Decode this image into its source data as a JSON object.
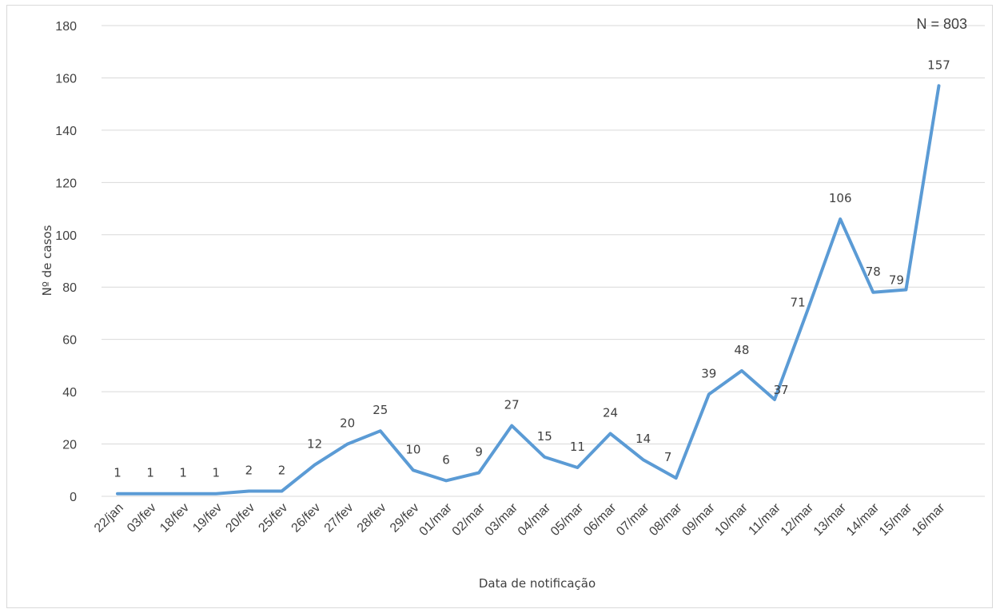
{
  "chart_data": {
    "type": "line",
    "title": "",
    "xlabel": "Data de notificação",
    "ylabel": "Nº de casos",
    "annotation": "N = 803",
    "ylim": [
      0,
      180
    ],
    "ytick_step": 20,
    "grid": "horizontal",
    "legend": "none",
    "line_color": "#5b9bd5",
    "categories": [
      "22/jan",
      "03/fev",
      "18/fev",
      "19/fev",
      "20/fev",
      "25/fev",
      "26/fev",
      "27/fev",
      "28/fev",
      "29/fev",
      "01/mar",
      "02/mar",
      "03/mar",
      "04/mar",
      "05/mar",
      "06/mar",
      "07/mar",
      "08/mar",
      "09/mar",
      "10/mar",
      "11/mar",
      "12/mar",
      "13/mar",
      "14/mar",
      "15/mar",
      "16/mar"
    ],
    "series": [
      {
        "values": [
          1,
          1,
          1,
          1,
          2,
          2,
          12,
          20,
          25,
          10,
          6,
          9,
          27,
          15,
          11,
          24,
          14,
          7,
          39,
          48,
          37,
          71,
          106,
          78,
          79,
          157
        ]
      }
    ]
  }
}
